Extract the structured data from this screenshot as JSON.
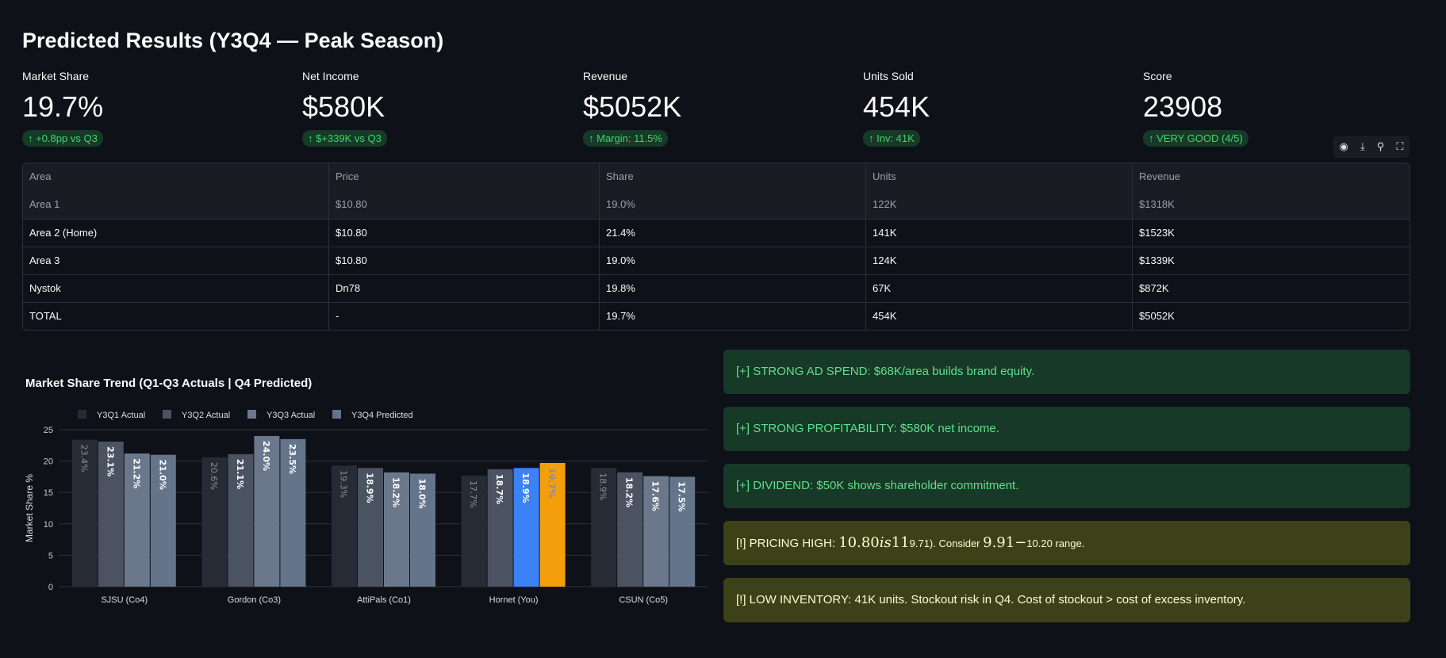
{
  "title": "Predicted Results (Y3Q4 — Peak Season)",
  "metrics": [
    {
      "label": "Market Share",
      "value": "19.7%",
      "delta": "↑ +0.8pp vs Q3"
    },
    {
      "label": "Net Income",
      "value": "$580K",
      "delta": "↑ $+339K vs Q3"
    },
    {
      "label": "Revenue",
      "value": "$5052K",
      "delta": "↑ Margin: 11.5%"
    },
    {
      "label": "Units Sold",
      "value": "454K",
      "delta": "↑ Inv: 41K"
    },
    {
      "label": "Score",
      "value": "23908",
      "delta": "↑ VERY GOOD (4/5)"
    }
  ],
  "toolbar": {
    "icons": [
      "eye-icon",
      "download-icon",
      "search-icon",
      "fullscreen-icon"
    ]
  },
  "table": {
    "headers": [
      "Area",
      "Price",
      "Share",
      "Units",
      "Revenue"
    ],
    "rows": [
      [
        "Area 1",
        "$10.80",
        "19.0%",
        "122K",
        "$1318K"
      ],
      [
        "Area 2 (Home)",
        "$10.80",
        "21.4%",
        "141K",
        "$1523K"
      ],
      [
        "Area 3",
        "$10.80",
        "19.0%",
        "124K",
        "$1339K"
      ],
      [
        "Nystok",
        "Dn78",
        "19.8%",
        "67K",
        "$872K"
      ],
      [
        "TOTAL",
        "-",
        "19.7%",
        "454K",
        "$5052K"
      ]
    ]
  },
  "chart_data": {
    "type": "bar",
    "title": "Market Share Trend (Q1-Q3 Actuals | Q4 Predicted)",
    "ylabel": "Market Share %",
    "xlabel": "",
    "ylim": [
      0,
      25
    ],
    "yticks": [
      0,
      5,
      10,
      15,
      20,
      25
    ],
    "grid": true,
    "legend": "top-left",
    "categories": [
      "SJSU (Co4)",
      "Gordon (Co3)",
      "AttiPals (Co1)",
      "Hornet (You)",
      "CSUN (Co5)"
    ],
    "series": [
      {
        "name": "Y3Q1 Actual",
        "color": "#262b36",
        "values": [
          23.4,
          20.6,
          19.3,
          17.7,
          18.9
        ]
      },
      {
        "name": "Y3Q2 Actual",
        "color": "#4b5362",
        "values": [
          23.1,
          21.1,
          18.9,
          18.7,
          18.2
        ]
      },
      {
        "name": "Y3Q3 Actual",
        "color": "#6b778b",
        "values": [
          21.2,
          24.0,
          18.2,
          18.9,
          17.6
        ]
      },
      {
        "name": "Y3Q4 Predicted",
        "color": "#64748b",
        "values": [
          21.0,
          23.5,
          18.0,
          19.7,
          17.5
        ]
      }
    ],
    "highlight": {
      "category": "Hornet (You)",
      "Y3Q3 Actual": "#3b82f6",
      "Y3Q4 Predicted": "#f59e0b"
    }
  },
  "alerts": [
    {
      "type": "success",
      "text": "[+] STRONG AD SPEND: $68K/area builds brand equity."
    },
    {
      "type": "success",
      "text": "[+] STRONG PROFITABILITY: $580K net income."
    },
    {
      "type": "success",
      "text": "[+] DIVIDEND: $50K shows shareholder commitment."
    },
    {
      "type": "warning",
      "prefix": "[!] PRICING HIGH: ",
      "math1": "10.80",
      "math1_italic": "is",
      "math1_tail": "11",
      "mid": "9.71). Consider ",
      "math2": "9.91−",
      "tail": "10.20 range."
    },
    {
      "type": "warning",
      "text": "[!] LOW INVENTORY: 41K units. Stockout risk in Q4. Cost of stockout > cost of excess inventory."
    }
  ]
}
